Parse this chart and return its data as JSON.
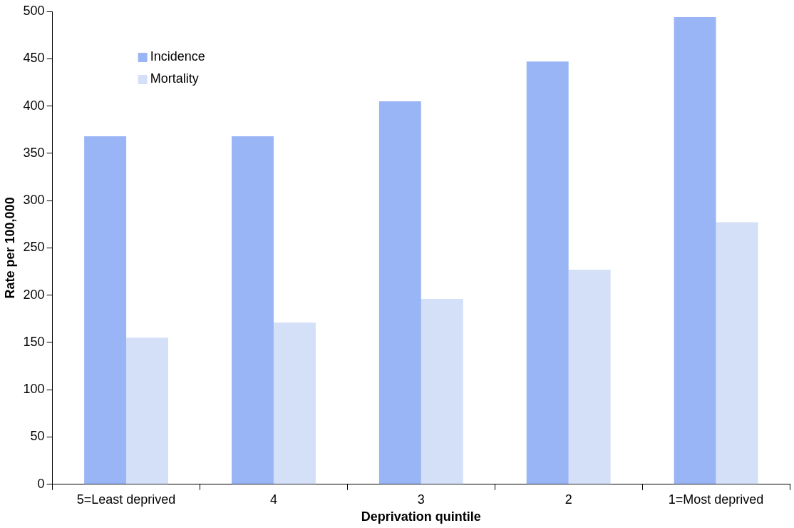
{
  "chart_data": {
    "type": "bar",
    "xlabel": "Deprivation quintile",
    "ylabel": "Rate per 100,000",
    "categories": [
      "5=Least deprived",
      "4",
      "3",
      "2",
      "1=Most deprived"
    ],
    "series": [
      {
        "name": "Incidence",
        "color": "#99b5f6",
        "values": [
          368,
          368,
          405,
          447,
          494
        ]
      },
      {
        "name": "Mortality",
        "color": "#d4e0f8",
        "values": [
          155,
          171,
          196,
          227,
          277
        ]
      }
    ],
    "ylim": [
      0,
      500
    ],
    "yticks": [
      0,
      50,
      100,
      150,
      200,
      250,
      300,
      350,
      400,
      450,
      500
    ],
    "grid": false,
    "legend": "top left"
  }
}
